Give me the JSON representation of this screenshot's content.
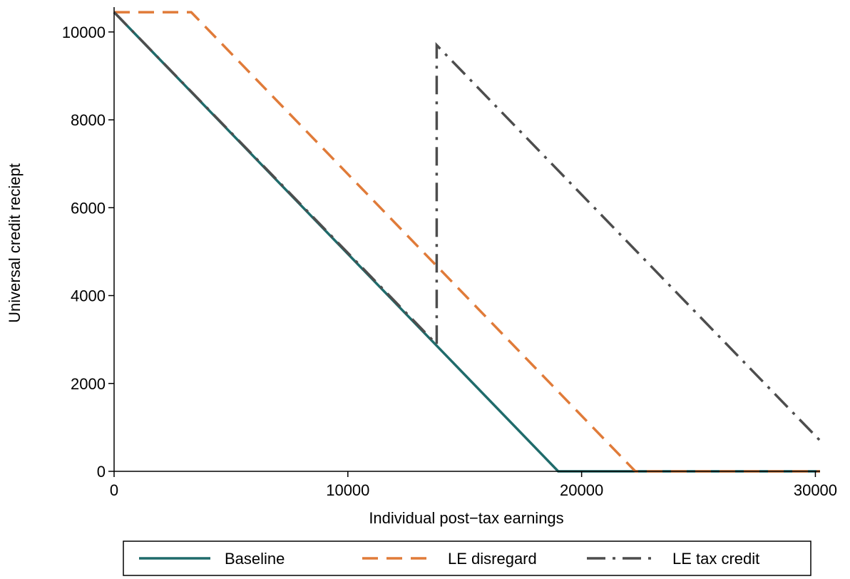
{
  "chart_data": {
    "type": "line",
    "xlabel": "Individual post−tax earnings",
    "ylabel": "Universal credit reciept",
    "xlim": [
      0,
      30200
    ],
    "ylim": [
      0,
      10500
    ],
    "xticks": [
      0,
      10000,
      20000,
      30000
    ],
    "xtick_labels": [
      "0",
      "10000",
      "20000",
      "30000"
    ],
    "yticks": [
      0,
      2000,
      4000,
      6000,
      8000,
      10000
    ],
    "ytick_labels": [
      "0",
      "2000",
      "4000",
      "6000",
      "8000",
      "10000"
    ],
    "grid": false,
    "legend_position": "bottom",
    "series": [
      {
        "name": "Baseline",
        "color": "#1f6b6b",
        "dash": "solid",
        "x": [
          0,
          19000,
          30200
        ],
        "y": [
          10450,
          0,
          0
        ]
      },
      {
        "name": "LE disregard",
        "color": "#e07b39",
        "dash": "dash",
        "x": [
          0,
          3300,
          22300,
          30200
        ],
        "y": [
          10450,
          10450,
          0,
          0
        ]
      },
      {
        "name": "LE tax credit",
        "color": "#4d4d4d",
        "dash": "dashdot",
        "x": [
          0,
          13800,
          13800,
          30200
        ],
        "y": [
          10450,
          2890,
          9700,
          700
        ]
      }
    ]
  }
}
